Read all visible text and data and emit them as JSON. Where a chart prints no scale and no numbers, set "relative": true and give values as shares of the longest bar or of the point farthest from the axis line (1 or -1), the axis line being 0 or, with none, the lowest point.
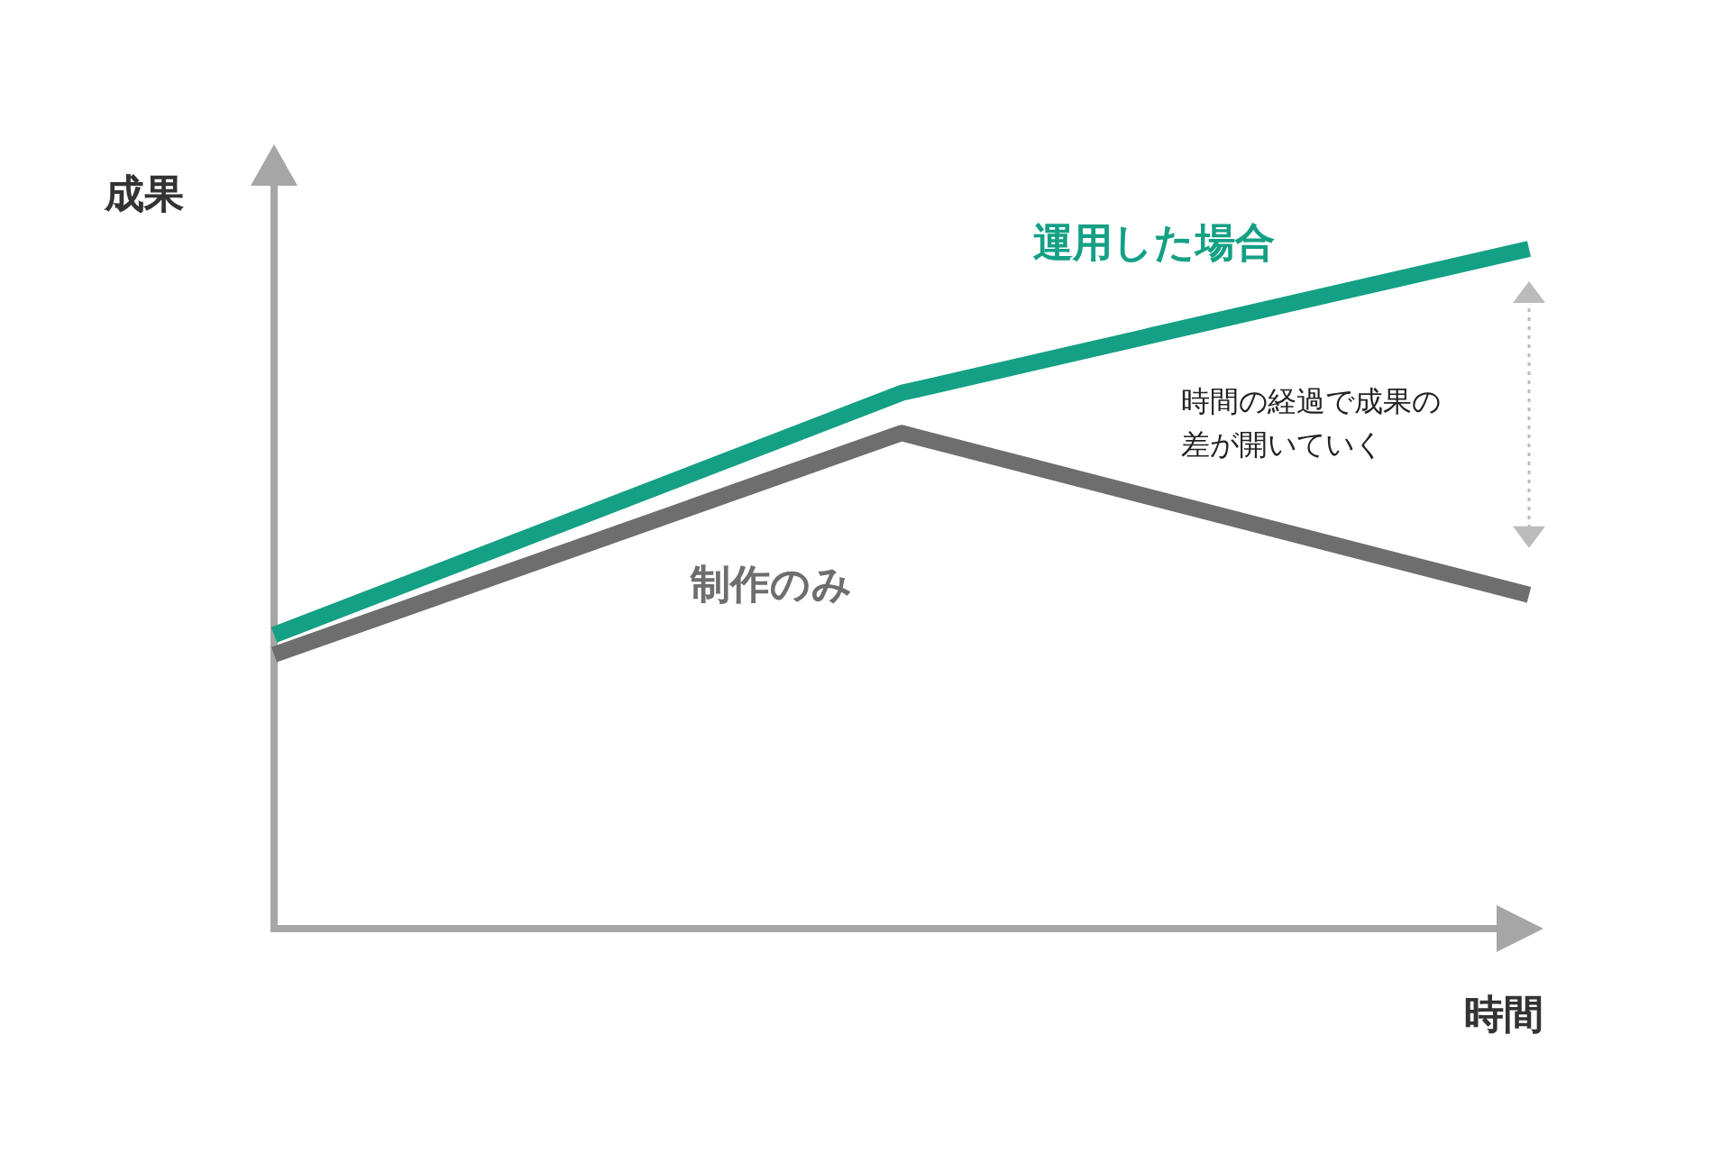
{
  "chart_data": {
    "type": "line",
    "relative": true,
    "xlabel": "時間",
    "ylabel": "成果",
    "categories": [
      null,
      null,
      null
    ],
    "series": [
      {
        "name": "運用した場合",
        "color": "#14a085",
        "values": [
          0.432,
          0.788,
          1
        ]
      },
      {
        "name": "制作のみ",
        "color": "#6e6e6e",
        "values": [
          0.403,
          0.729,
          0.491
        ]
      }
    ],
    "annotations": [
      "時間の経過で成果の差が開いていく"
    ]
  }
}
